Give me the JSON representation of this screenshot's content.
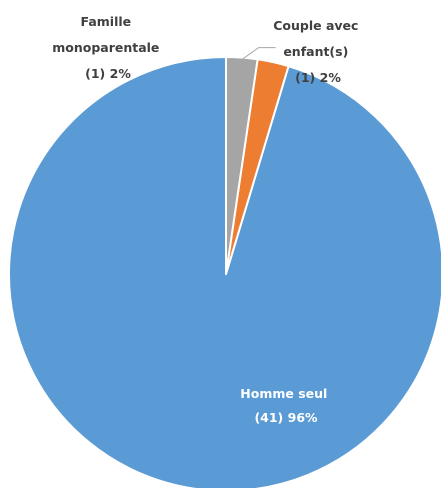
{
  "chart_data": {
    "type": "pie",
    "slices": [
      {
        "label_lines": [
          "Homme seul",
          "(41) 96%"
        ],
        "count": 41,
        "percent": 96,
        "color": "#5B9BD5"
      },
      {
        "label_lines": [
          "Famille",
          "monoparentale",
          "(1) 2%"
        ],
        "count": 1,
        "percent": 2,
        "color": "#ED7D31"
      },
      {
        "label_lines": [
          "Couple avec",
          "enfant(s)",
          "(1) 2%"
        ],
        "count": 1,
        "percent": 2,
        "color": "#A5A5A5"
      }
    ],
    "start_angle_deg": 0,
    "direction": "counterclockwise",
    "legend": "none",
    "border_color": "#ffffff"
  }
}
